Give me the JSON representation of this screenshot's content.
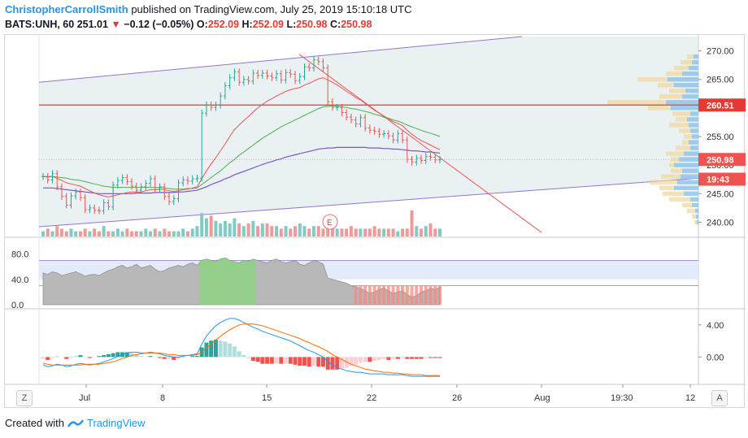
{
  "header": {
    "author": "ChristopherCarrollSmith",
    "published": "published on TradingView.com, July 25, 2019 15:10:18 UTC"
  },
  "quote": {
    "symbol": "BATS:UNH, 60",
    "last": "251.01",
    "change": "−0.12 (−0.05%)",
    "o_label": "O:",
    "o": "252.09",
    "h_label": "H:",
    "h": "252.09",
    "l_label": "L:",
    "l": "250.98",
    "c_label": "C:",
    "c": "250.98"
  },
  "footer": {
    "created": "Created with",
    "brand": "TradingView"
  },
  "buttons": {
    "left": "Z",
    "right": "A"
  },
  "colors": {
    "up": "#26a69a",
    "down": "#ef5350",
    "ema_fast": "#ef5350",
    "ema_mid": "#4caf50",
    "ema_slow": "#7e57c2",
    "channel": "#9575cd",
    "trend": "#ef5350",
    "macd": "#2196f3",
    "signal": "#ff6d00"
  },
  "chart_data": {
    "type": "line",
    "price_axis": {
      "ticks": [
        "270.00",
        "265.00",
        "260.00",
        "255.00",
        "250.00",
        "245.00",
        "240.00"
      ],
      "ylim": [
        237.5,
        272.5
      ]
    },
    "time_axis": {
      "ticks": [
        "Jul",
        "8",
        "15",
        "22",
        "26",
        "Aug",
        "19:30",
        "12"
      ]
    },
    "price_labels": {
      "horizontal_line": "260.51",
      "last_close": "250.98",
      "countdown": "19:43"
    },
    "series": [
      {
        "name": "close",
        "values": [
          248,
          247.4,
          248.5,
          246.2,
          244.5,
          243,
          244.6,
          245.3,
          244.3,
          242.2,
          242.5,
          242.1,
          242,
          243.4,
          242.7,
          246.5,
          247.3,
          247.8,
          247.1,
          246.3,
          245.6,
          246.2,
          246.8,
          247.6,
          245.7,
          246.2,
          244.5,
          243.6,
          244.1,
          246.9,
          247.4,
          247.2,
          247.6,
          247.7,
          259.1,
          260.5,
          260.1,
          260.5,
          262.1,
          263.9,
          265.3,
          266.3,
          264.5,
          265,
          264.7,
          266.1,
          265.7,
          266.1,
          265.6,
          265.3,
          266,
          264.9,
          266.2,
          265.9,
          264.8,
          265.5,
          267.2,
          267,
          268.4,
          268.1,
          267,
          261.1,
          260.1,
          260.1,
          259.2,
          258.4,
          257.9,
          257.2,
          258.3,
          256.5,
          256.1,
          255.9,
          255.4,
          255.5,
          255.1,
          254.4,
          255.5,
          254.4,
          251,
          250.5,
          251.2,
          250.8,
          251.5,
          251.4,
          250.9,
          251
        ]
      }
    ],
    "ema_fast_values": [
      248,
      247.9,
      248,
      247.7,
      247.3,
      246.9,
      246.7,
      246.5,
      246.3,
      245.9,
      245.5,
      245.1,
      244.8,
      244.6,
      244.4,
      244.6,
      244.8,
      245,
      245.2,
      245.3,
      245.3,
      245.3,
      245.5,
      245.7,
      245.7,
      245.8,
      245.7,
      245.5,
      245.4,
      245.5,
      245.7,
      245.8,
      246,
      246.2,
      247.6,
      249,
      250.2,
      251.3,
      252.5,
      253.7,
      255,
      256.2,
      257,
      257.8,
      258.5,
      259.3,
      260,
      260.6,
      261.2,
      261.6,
      262.1,
      262.5,
      262.9,
      263.2,
      263.4,
      263.6,
      264,
      264.3,
      264.7,
      265.1,
      265.3,
      264.9,
      264.5,
      264,
      263.5,
      262.9,
      262.4,
      261.8,
      261.4,
      260.8,
      260.2,
      259.6,
      259.1,
      258.6,
      258.1,
      257.6,
      257.3,
      256.9,
      256.1,
      255.4,
      254.8,
      254.3,
      253.9,
      253.5,
      253.1,
      252.7
    ],
    "ema_mid_values": [
      248,
      248,
      248,
      247.9,
      247.8,
      247.7,
      247.5,
      247.4,
      247.3,
      247.1,
      246.9,
      246.7,
      246.5,
      246.3,
      246.2,
      246.1,
      246.1,
      246.1,
      246.1,
      246.1,
      246.1,
      246.1,
      246.1,
      246.1,
      246.1,
      246.1,
      246,
      245.9,
      245.8,
      245.8,
      245.8,
      245.9,
      245.9,
      246,
      246.6,
      247.2,
      247.8,
      248.4,
      249,
      249.7,
      250.4,
      251,
      251.7,
      252.3,
      252.9,
      253.5,
      254.1,
      254.7,
      255.2,
      255.7,
      256.2,
      256.7,
      257.1,
      257.5,
      257.9,
      258.3,
      258.7,
      259.1,
      259.5,
      259.9,
      260.2,
      260.3,
      260.3,
      260.3,
      260.2,
      260.1,
      259.9,
      259.8,
      259.6,
      259.4,
      259.2,
      258.9,
      258.7,
      258.4,
      258.2,
      257.9,
      257.7,
      257.4,
      257,
      256.7,
      256.4,
      256.1,
      255.8,
      255.6,
      255.3,
      255
    ],
    "ema_slow_values": [
      246,
      246,
      246,
      245.9,
      245.8,
      245.7,
      245.6,
      245.5,
      245.4,
      245.3,
      245.2,
      245.1,
      245,
      245,
      245,
      245,
      245,
      245,
      245,
      245,
      245.1,
      245.1,
      245.1,
      245.1,
      245.2,
      245.2,
      245.2,
      245.2,
      245.2,
      245.3,
      245.3,
      245.4,
      245.5,
      245.6,
      245.9,
      246.2,
      246.6,
      246.9,
      247.2,
      247.6,
      247.9,
      248.3,
      248.6,
      248.9,
      249.2,
      249.5,
      249.8,
      250.1,
      250.4,
      250.6,
      250.9,
      251.1,
      251.4,
      251.6,
      251.8,
      252,
      252.2,
      252.4,
      252.6,
      252.8,
      252.9,
      253,
      253,
      253.1,
      253.1,
      253.1,
      253.1,
      253.1,
      253.1,
      253.1,
      253,
      253,
      253,
      252.9,
      252.9,
      252.8,
      252.8,
      252.7,
      252.6,
      252.5,
      252.5,
      252.4,
      252.3,
      252.3,
      252.2,
      252.1
    ],
    "volume": [
      2,
      3,
      2,
      4,
      3,
      2,
      3,
      2,
      2,
      3,
      2,
      3,
      2,
      4,
      2,
      2,
      3,
      2,
      3,
      2,
      2,
      2,
      3,
      2,
      3,
      2,
      3,
      2,
      2,
      2,
      3,
      2,
      3,
      4,
      9,
      7,
      8,
      6,
      5,
      6,
      5,
      7,
      5,
      4,
      5,
      6,
      4,
      5,
      5,
      4,
      4,
      3,
      4,
      3,
      4,
      5,
      4,
      3,
      4,
      4,
      3,
      5,
      4,
      3,
      3,
      3,
      4,
      3,
      3,
      3,
      3,
      4,
      3,
      3,
      3,
      3,
      2,
      3,
      3,
      10,
      4,
      3,
      4,
      5,
      3,
      3
    ],
    "stoch_rsi": {
      "ticks": [
        "80.0",
        "40.0",
        "0.0"
      ],
      "band": [
        40,
        70
      ],
      "values": [
        50,
        48,
        52,
        50,
        46,
        48,
        50,
        52,
        49,
        45,
        47,
        48,
        46,
        50,
        54,
        56,
        60,
        62,
        58,
        60,
        64,
        58,
        60,
        62,
        56,
        52,
        54,
        58,
        60,
        62,
        60,
        64,
        66,
        62,
        70,
        72,
        70,
        68,
        72,
        74,
        70,
        68,
        66,
        70,
        68,
        72,
        70,
        68,
        66,
        70,
        72,
        68,
        66,
        68,
        70,
        64,
        62,
        66,
        70,
        68,
        64,
        42,
        40,
        38,
        36,
        34,
        30,
        28,
        26,
        22,
        18,
        20,
        24,
        26,
        22,
        18,
        20,
        22,
        16,
        12,
        14,
        20,
        22,
        26,
        24,
        28
      ],
      "highlight_green": [
        34,
        45
      ],
      "highlight_red": [
        63,
        85
      ]
    },
    "macd": {
      "ticks": [
        "4.00",
        "0.00"
      ],
      "ylim": [
        -3,
        5.5
      ],
      "macd_values": [
        -1,
        -1.2,
        -1.1,
        -0.9,
        -1,
        -1.2,
        -1.1,
        -0.9,
        -0.8,
        -0.9,
        -1,
        -0.9,
        -0.8,
        -0.6,
        -0.4,
        -0.2,
        0.1,
        0.3,
        0.5,
        0.6,
        0.6,
        0.5,
        0.5,
        0.6,
        0.5,
        0.4,
        0.2,
        0.1,
        0,
        0,
        0.1,
        0.2,
        0.3,
        0.4,
        1.6,
        2.6,
        3.3,
        3.9,
        4.3,
        4.6,
        4.8,
        4.8,
        4.6,
        4.3,
        4,
        3.7,
        3.5,
        3.2,
        3,
        2.8,
        2.6,
        2.4,
        2.2,
        2,
        1.7,
        1.4,
        1.1,
        0.8,
        0.6,
        0.3,
        0,
        -0.6,
        -1,
        -1.3,
        -1.5,
        -1.7,
        -1.8,
        -1.9,
        -1.9,
        -2,
        -2.1,
        -2.1,
        -2.1,
        -2.1,
        -2.2,
        -2.2,
        -2.2,
        -2.2,
        -2.3,
        -2.4,
        -2.4,
        -2.4,
        -2.4,
        -2.4,
        -2.4,
        -2.4
      ],
      "signal_values": [
        -0.8,
        -0.9,
        -1,
        -1,
        -1,
        -1,
        -1,
        -1,
        -1,
        -0.9,
        -0.9,
        -0.9,
        -0.9,
        -0.8,
        -0.7,
        -0.6,
        -0.4,
        -0.2,
        0,
        0.2,
        0.3,
        0.4,
        0.5,
        0.5,
        0.5,
        0.5,
        0.4,
        0.3,
        0.3,
        0.2,
        0.2,
        0.2,
        0.2,
        0.3,
        0.6,
        1.1,
        1.6,
        2.1,
        2.6,
        3,
        3.4,
        3.7,
        4,
        4.1,
        4.1,
        4.1,
        4,
        3.9,
        3.7,
        3.5,
        3.3,
        3.1,
        2.9,
        2.7,
        2.5,
        2.3,
        2,
        1.8,
        1.5,
        1.3,
        1,
        0.7,
        0.3,
        0,
        -0.3,
        -0.6,
        -0.9,
        -1.1,
        -1.3,
        -1.5,
        -1.6,
        -1.7,
        -1.8,
        -1.9,
        -1.9,
        -2,
        -2,
        -2.1,
        -2.1,
        -2.2,
        -2.2,
        -2.2,
        -2.3,
        -2.3,
        -2.3,
        -2.3
      ]
    }
  }
}
